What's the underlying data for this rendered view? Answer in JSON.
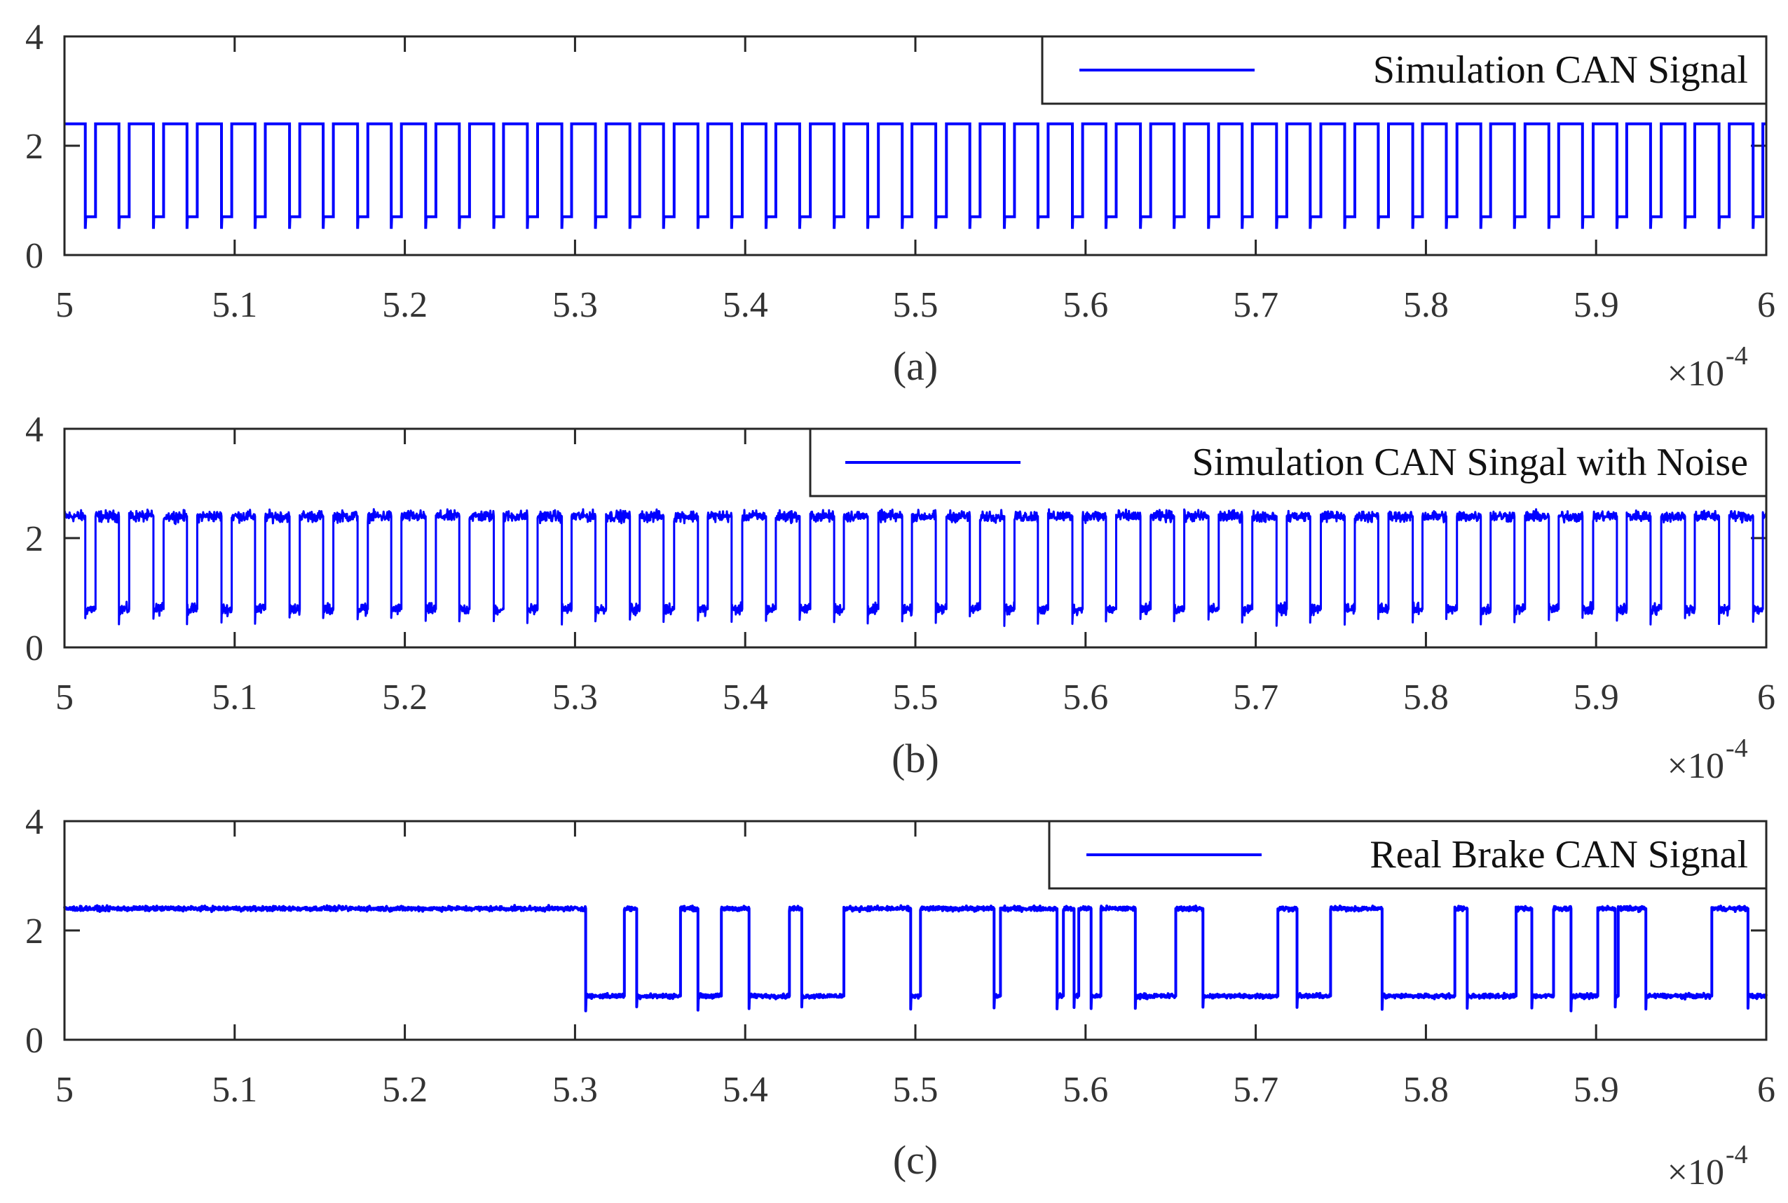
{
  "figure": {
    "line_color": "#0000ff",
    "axis_color": "#262626"
  },
  "chart_data": [
    {
      "type": "line",
      "caption": "(a)",
      "legend": "Simulation CAN Signal",
      "legend_position": "top-right",
      "x_multiplier_label": "×10",
      "x_multiplier_exp": "-4",
      "xlim": [
        5,
        6
      ],
      "ylim": [
        0,
        4
      ],
      "xticks": [
        "5",
        "5.1",
        "5.2",
        "5.3",
        "5.4",
        "5.5",
        "5.6",
        "5.7",
        "5.8",
        "5.9",
        "6"
      ],
      "yticks": [
        "0",
        "2",
        "4"
      ],
      "series": [
        {
          "name": "Simulation CAN Signal",
          "high": 2.4,
          "low": 0.7,
          "period": 0.02,
          "low_start": 0.012,
          "low_end": 0.018,
          "noise": 0
        }
      ]
    },
    {
      "type": "line",
      "caption": "(b)",
      "legend": "Simulation CAN Singal with Noise",
      "legend_position": "top-right",
      "x_multiplier_label": "×10",
      "x_multiplier_exp": "-4",
      "xlim": [
        5,
        6
      ],
      "ylim": [
        0,
        4
      ],
      "xticks": [
        "5",
        "5.1",
        "5.2",
        "5.3",
        "5.4",
        "5.5",
        "5.6",
        "5.7",
        "5.8",
        "5.9",
        "6"
      ],
      "yticks": [
        "0",
        "2",
        "4"
      ],
      "series": [
        {
          "name": "Simulation CAN Singal with Noise",
          "high": 2.4,
          "low": 0.7,
          "period": 0.02,
          "low_start": 0.012,
          "low_end": 0.018,
          "noise": 0.15
        }
      ]
    },
    {
      "type": "line",
      "caption": "(c)",
      "legend": "Real Brake CAN Signal",
      "legend_position": "top-right",
      "x_multiplier_label": "×10",
      "x_multiplier_exp": "-4",
      "xlim": [
        5,
        6
      ],
      "ylim": [
        0,
        4
      ],
      "xticks": [
        "5",
        "5.1",
        "5.2",
        "5.3",
        "5.4",
        "5.5",
        "5.6",
        "5.7",
        "5.8",
        "5.9",
        "6"
      ],
      "yticks": [
        "0",
        "2",
        "4"
      ],
      "series": [
        {
          "name": "Real Brake CAN Signal",
          "high": 2.4,
          "low": 0.8,
          "noise": 0.04,
          "high_intervals": [
            [
              5.0,
              5.306
            ],
            [
              5.329,
              5.336
            ],
            [
              5.362,
              5.372
            ],
            [
              5.386,
              5.402
            ],
            [
              5.426,
              5.433
            ],
            [
              5.458,
              5.497
            ],
            [
              5.503,
              5.546
            ],
            [
              5.55,
              5.583
            ],
            [
              5.587,
              5.593
            ],
            [
              5.596,
              5.603
            ],
            [
              5.609,
              5.629
            ],
            [
              5.653,
              5.669
            ],
            [
              5.713,
              5.724
            ],
            [
              5.744,
              5.774
            ],
            [
              5.817,
              5.824
            ],
            [
              5.853,
              5.862
            ],
            [
              5.875,
              5.885
            ],
            [
              5.901,
              5.911
            ],
            [
              5.913,
              5.929
            ],
            [
              5.968,
              5.989
            ]
          ]
        }
      ]
    }
  ]
}
